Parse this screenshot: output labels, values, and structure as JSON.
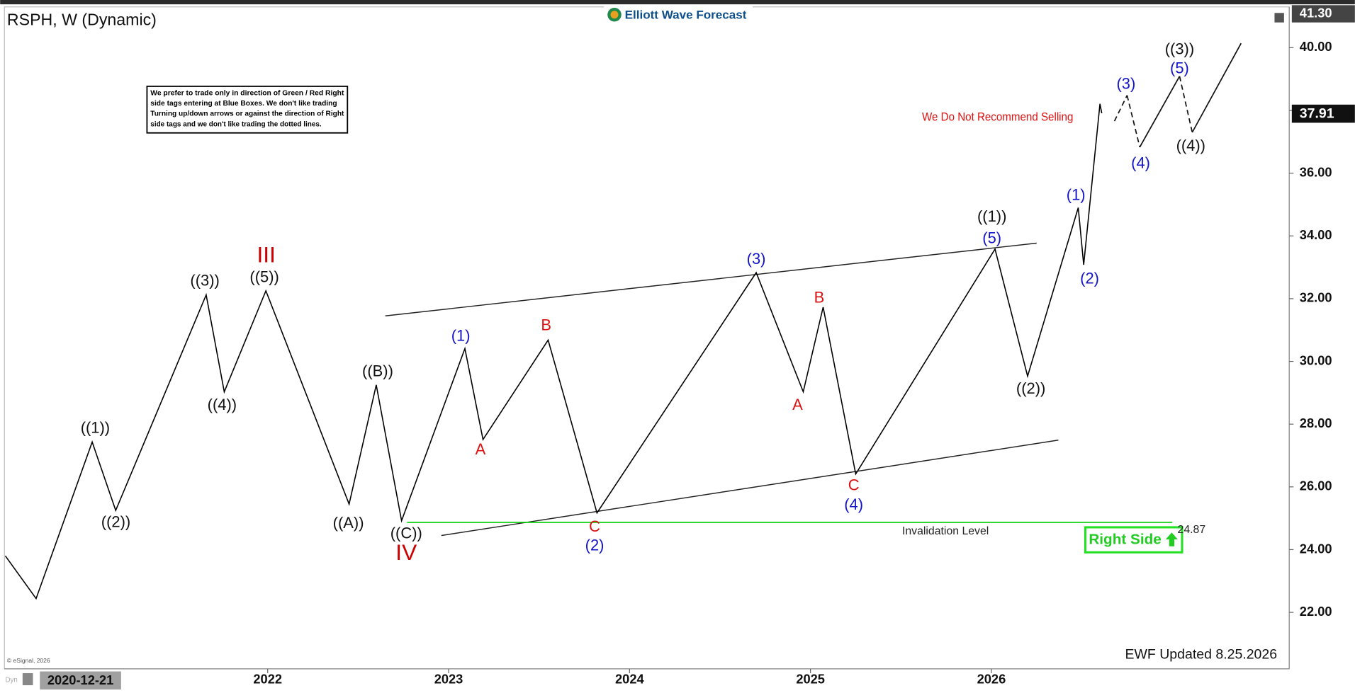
{
  "chart_data": {
    "type": "line",
    "title": "RSPH, W (Dynamic)",
    "logo": "Elliott Wave Forecast",
    "xlim": [
      2020.545,
      2027.646
    ],
    "ylim": [
      20.2,
      41.3
    ],
    "xticks": [
      2022,
      2023,
      2024,
      2025,
      2026
    ],
    "yticks": [
      {
        "value": 22,
        "label": "22.00"
      },
      {
        "value": 24,
        "label": "24.00"
      },
      {
        "value": 26,
        "label": "26.00"
      },
      {
        "value": 28,
        "label": "28.00"
      },
      {
        "value": 30,
        "label": "30.00"
      },
      {
        "value": 32,
        "label": "32.00"
      },
      {
        "value": 34,
        "label": "34.00"
      },
      {
        "value": 36,
        "label": "36.00"
      },
      {
        "value": 38,
        "label": "38.00"
      },
      {
        "value": 40,
        "label": "40.00"
      }
    ],
    "color": "#000000",
    "x": [
      2020.55,
      2020.72,
      2021.03,
      2021.16,
      2021.66,
      2021.76,
      2021.99,
      2022.45,
      2022.6,
      2022.74,
      2023.09,
      2023.19,
      2023.55,
      2023.82,
      2024.7,
      2024.96,
      2025.07,
      2025.25,
      2026.02,
      2026.2,
      2026.48,
      2026.51,
      2026.6,
      2026.61
    ],
    "values": [
      23.8,
      22.44,
      27.43,
      25.25,
      32.12,
      29.03,
      32.25,
      25.45,
      29.25,
      24.92,
      30.41,
      27.51,
      30.68,
      25.17,
      32.83,
      29.03,
      31.73,
      26.41,
      33.58,
      29.53,
      34.9,
      33.08,
      38.21,
      37.91
    ],
    "projection": {
      "x": [
        2026.68,
        2026.75,
        2026.82,
        2027.04,
        2027.11,
        2027.38
      ],
      "values": [
        37.66,
        38.48,
        36.83,
        39.09,
        37.3,
        40.14
      ],
      "styles": [
        "dashed",
        "dashed",
        "solid",
        "dashed",
        "solid"
      ]
    },
    "channel_lines": [
      {
        "x": [
          2022.65,
          2026.25
        ],
        "values": [
          31.45,
          33.77
        ]
      },
      {
        "x": [
          2022.96,
          2026.37
        ],
        "values": [
          24.45,
          27.49
        ]
      }
    ],
    "invalidation": {
      "label": "Invalidation Level",
      "value": 24.87,
      "x": [
        2022.77,
        2027.0
      ],
      "color": "#00cc00"
    },
    "top_price": {
      "value": 41.3,
      "label": "41.30"
    },
    "last_price": 37.91,
    "annotations": [
      {
        "text": "((1))",
        "x": 2021.047,
        "y": 27.85,
        "color": "#111111"
      },
      {
        "text": "((2))",
        "x": 2021.161,
        "y": 24.85,
        "color": "#111111"
      },
      {
        "text": "((3))",
        "x": 2021.653,
        "y": 32.55,
        "color": "#111111"
      },
      {
        "text": "((4))",
        "x": 2021.748,
        "y": 28.59,
        "color": "#111111"
      },
      {
        "text": "((5))",
        "x": 2021.982,
        "y": 32.66,
        "color": "#111111"
      },
      {
        "text": "III",
        "x": 2021.992,
        "y": 33.35,
        "color": "#cc0000",
        "style": "large"
      },
      {
        "text": "((B))",
        "x": 2022.608,
        "y": 29.66,
        "color": "#111111"
      },
      {
        "text": "((A))",
        "x": 2022.446,
        "y": 24.82,
        "color": "#111111"
      },
      {
        "text": "((C))",
        "x": 2022.766,
        "y": 24.49,
        "color": "#111111"
      },
      {
        "text": "IV",
        "x": 2022.766,
        "y": 23.86,
        "color": "#cc0000",
        "style": "large"
      },
      {
        "text": "(1)",
        "x": 2023.067,
        "y": 30.79,
        "color": "#1515c8"
      },
      {
        "text": "A",
        "x": 2023.176,
        "y": 27.16,
        "color": "#dd1111"
      },
      {
        "text": "B",
        "x": 2023.539,
        "y": 31.12,
        "color": "#dd1111"
      },
      {
        "text": "C",
        "x": 2023.807,
        "y": 24.71,
        "color": "#dd1111"
      },
      {
        "text": "(2)",
        "x": 2023.807,
        "y": 24.11,
        "color": "#1515c8"
      },
      {
        "text": "(3)",
        "x": 2024.7,
        "y": 33.24,
        "color": "#1515c8"
      },
      {
        "text": "A",
        "x": 2024.929,
        "y": 28.59,
        "color": "#dd1111"
      },
      {
        "text": "B",
        "x": 2025.048,
        "y": 32.0,
        "color": "#dd1111"
      },
      {
        "text": "C",
        "x": 2025.239,
        "y": 26.03,
        "color": "#dd1111"
      },
      {
        "text": "(4)",
        "x": 2025.239,
        "y": 25.4,
        "color": "#1515c8"
      },
      {
        "text": "((1))",
        "x": 2026.003,
        "y": 34.59,
        "color": "#111111"
      },
      {
        "text": "(5)",
        "x": 2026.003,
        "y": 33.9,
        "color": "#1515c8"
      },
      {
        "text": "((2))",
        "x": 2026.218,
        "y": 29.11,
        "color": "#111111"
      },
      {
        "text": "(1)",
        "x": 2026.467,
        "y": 35.28,
        "color": "#1515c8"
      },
      {
        "text": "(2)",
        "x": 2026.543,
        "y": 32.61,
        "color": "#1515c8"
      },
      {
        "text": "(3)",
        "x": 2026.744,
        "y": 38.82,
        "color": "#1515c8"
      },
      {
        "text": "(4)",
        "x": 2026.825,
        "y": 36.29,
        "color": "#1515c8"
      },
      {
        "text": "((3))",
        "x": 2027.04,
        "y": 39.93,
        "color": "#111111"
      },
      {
        "text": "(5)",
        "x": 2027.04,
        "y": 39.32,
        "color": "#1515c8"
      },
      {
        "text": "((4))",
        "x": 2027.102,
        "y": 36.84,
        "color": "#111111"
      }
    ],
    "note_lines": [
      "We prefer to trade only in direction of Green / Red Right",
      "side tags entering at Blue Boxes. We don't like trading",
      "Turning up/down arrows or against the direction of Right",
      "side tags and we don't like trading the dotted lines."
    ],
    "warning": "We Do Not Recommend Selling",
    "right_side": "Right Side",
    "updated": "EWF Updated 8.25.2026",
    "copyright": "© eSignal, 2026",
    "date_box": "2020-12-21",
    "dyn": "Dyn"
  }
}
